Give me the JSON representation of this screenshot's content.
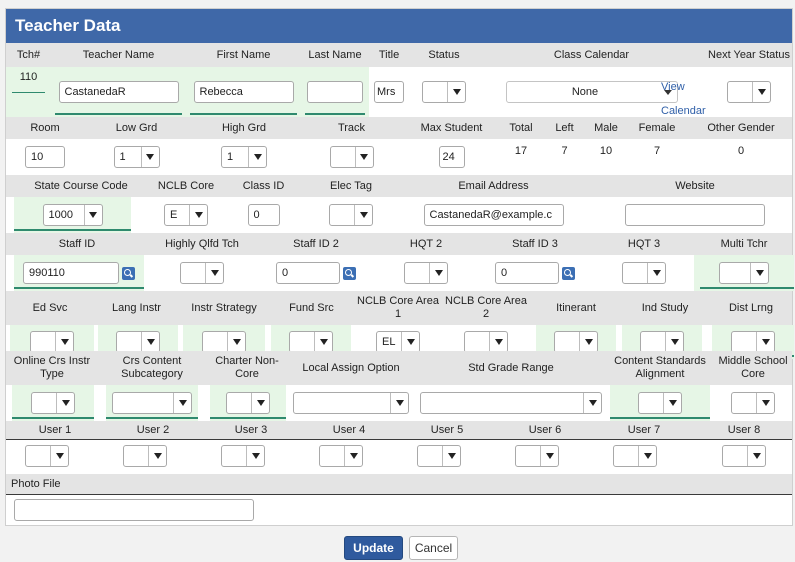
{
  "panel": {
    "title": "Teacher Data"
  },
  "row1": {
    "headers": [
      "Tch#",
      "Teacher Name",
      "First Name",
      "Last Name",
      "Title",
      "Status",
      "Class Calendar",
      "Next Year Status"
    ],
    "tch_num": "110",
    "teacher_name": "CastanedaR",
    "first_name": "Rebecca",
    "last_name": "",
    "title": "Mrs",
    "status": "",
    "class_calendar": "None",
    "view_calendar_link": "View Calendar",
    "next_year_status": ""
  },
  "row2": {
    "headers": [
      "Room",
      "Low Grd",
      "High Grd",
      "Track",
      "Max Student",
      "Total",
      "Left",
      "Male",
      "Female",
      "Other Gender"
    ],
    "room": "10",
    "low_grd": "1",
    "high_grd": "1",
    "track": "",
    "max_student": "24",
    "total": "17",
    "left": "7",
    "male": "10",
    "female": "7",
    "other_gender": "0"
  },
  "row3": {
    "headers": [
      "State Course Code",
      "NCLB Core",
      "Class ID",
      "Elec Tag",
      "Email Address",
      "Website"
    ],
    "state_course_code": "1000",
    "nclb_core": "E",
    "class_id": "0",
    "elec_tag": "",
    "email": "CastanedaR@example.c",
    "website": ""
  },
  "row4": {
    "headers": [
      "Staff ID",
      "Highly Qlfd Tch",
      "Staff ID 2",
      "HQT 2",
      "Staff ID 3",
      "HQT 3",
      "Multi Tchr"
    ],
    "staff_id": "990110",
    "highly_qlfd": "",
    "staff_id_2": "0",
    "hqt_2": "",
    "staff_id_3": "0",
    "hqt_3": "",
    "multi_tchr": ""
  },
  "row5": {
    "headers": [
      "Ed Svc",
      "Lang Instr",
      "Instr Strategy",
      "Fund Src",
      "NCLB Core Area 1",
      "NCLB Core Area 2",
      "Itinerant",
      "Ind Study",
      "Dist Lrng"
    ],
    "nclb_core_area_1": "EL"
  },
  "row6": {
    "headers": [
      "Online Crs Instr Type",
      "Crs Content Subcategory",
      "Charter Non-Core",
      "Local Assign Option",
      "Std Grade Range",
      "Content Standards Alignment",
      "Middle School Core"
    ]
  },
  "row7": {
    "headers": [
      "User 1",
      "User 2",
      "User 3",
      "User 4",
      "User 5",
      "User 6",
      "User 7",
      "User 8"
    ]
  },
  "photo": {
    "label": "Photo File",
    "value": ""
  },
  "actions": {
    "update": "Update",
    "cancel": "Cancel"
  }
}
